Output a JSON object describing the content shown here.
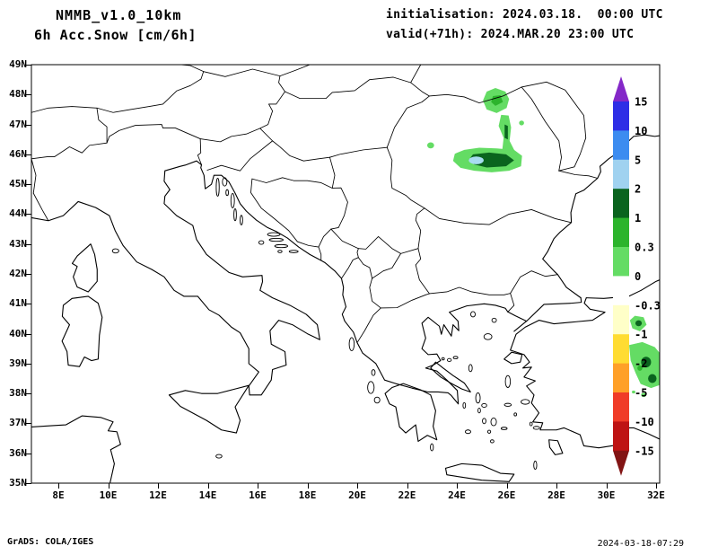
{
  "header": {
    "model": "NMMB_v1.0_10km",
    "product": "6h Acc.Snow [cm/6h]",
    "init": "initialisation: 2024.03.18.  00:00 UTC",
    "valid": "valid(+71h): 2024.MAR.20 23:00 UTC"
  },
  "map": {
    "y_axis_labels": [
      "49N",
      "48N",
      "47N",
      "46N",
      "45N",
      "44N",
      "43N",
      "42N",
      "41N",
      "40N",
      "39N",
      "38N",
      "37N",
      "36N",
      "35N"
    ],
    "x_axis_labels": [
      "8E",
      "10E",
      "12E",
      "14E",
      "16E",
      "18E",
      "20E",
      "22E",
      "24E",
      "26E",
      "28E",
      "30E",
      "32E"
    ]
  },
  "colorbar": {
    "labels": [
      "15",
      "10",
      "5",
      "2",
      "1",
      "0.3",
      "0",
      "-0.3",
      "-1",
      "-2",
      "-5",
      "-10",
      "-15"
    ],
    "colors": [
      "#8428c8",
      "#2e2ee6",
      "#3c8cf0",
      "#a0d2f0",
      "#0a641e",
      "#2cb42c",
      "#64dc64",
      "#ffffff",
      "#ffffc8",
      "#ffdc32",
      "#ffa028",
      "#f03c28",
      "#be1414",
      "#821414"
    ]
  },
  "snow_colors": {
    "light_green": "#64dc64",
    "medium_green": "#2cb42c",
    "dark_green": "#0a641e",
    "light_blue": "#a8dcf0"
  },
  "footer": {
    "credit": "GrADS: COLA/IGES",
    "timestamp": "2024-03-18-07:29"
  }
}
